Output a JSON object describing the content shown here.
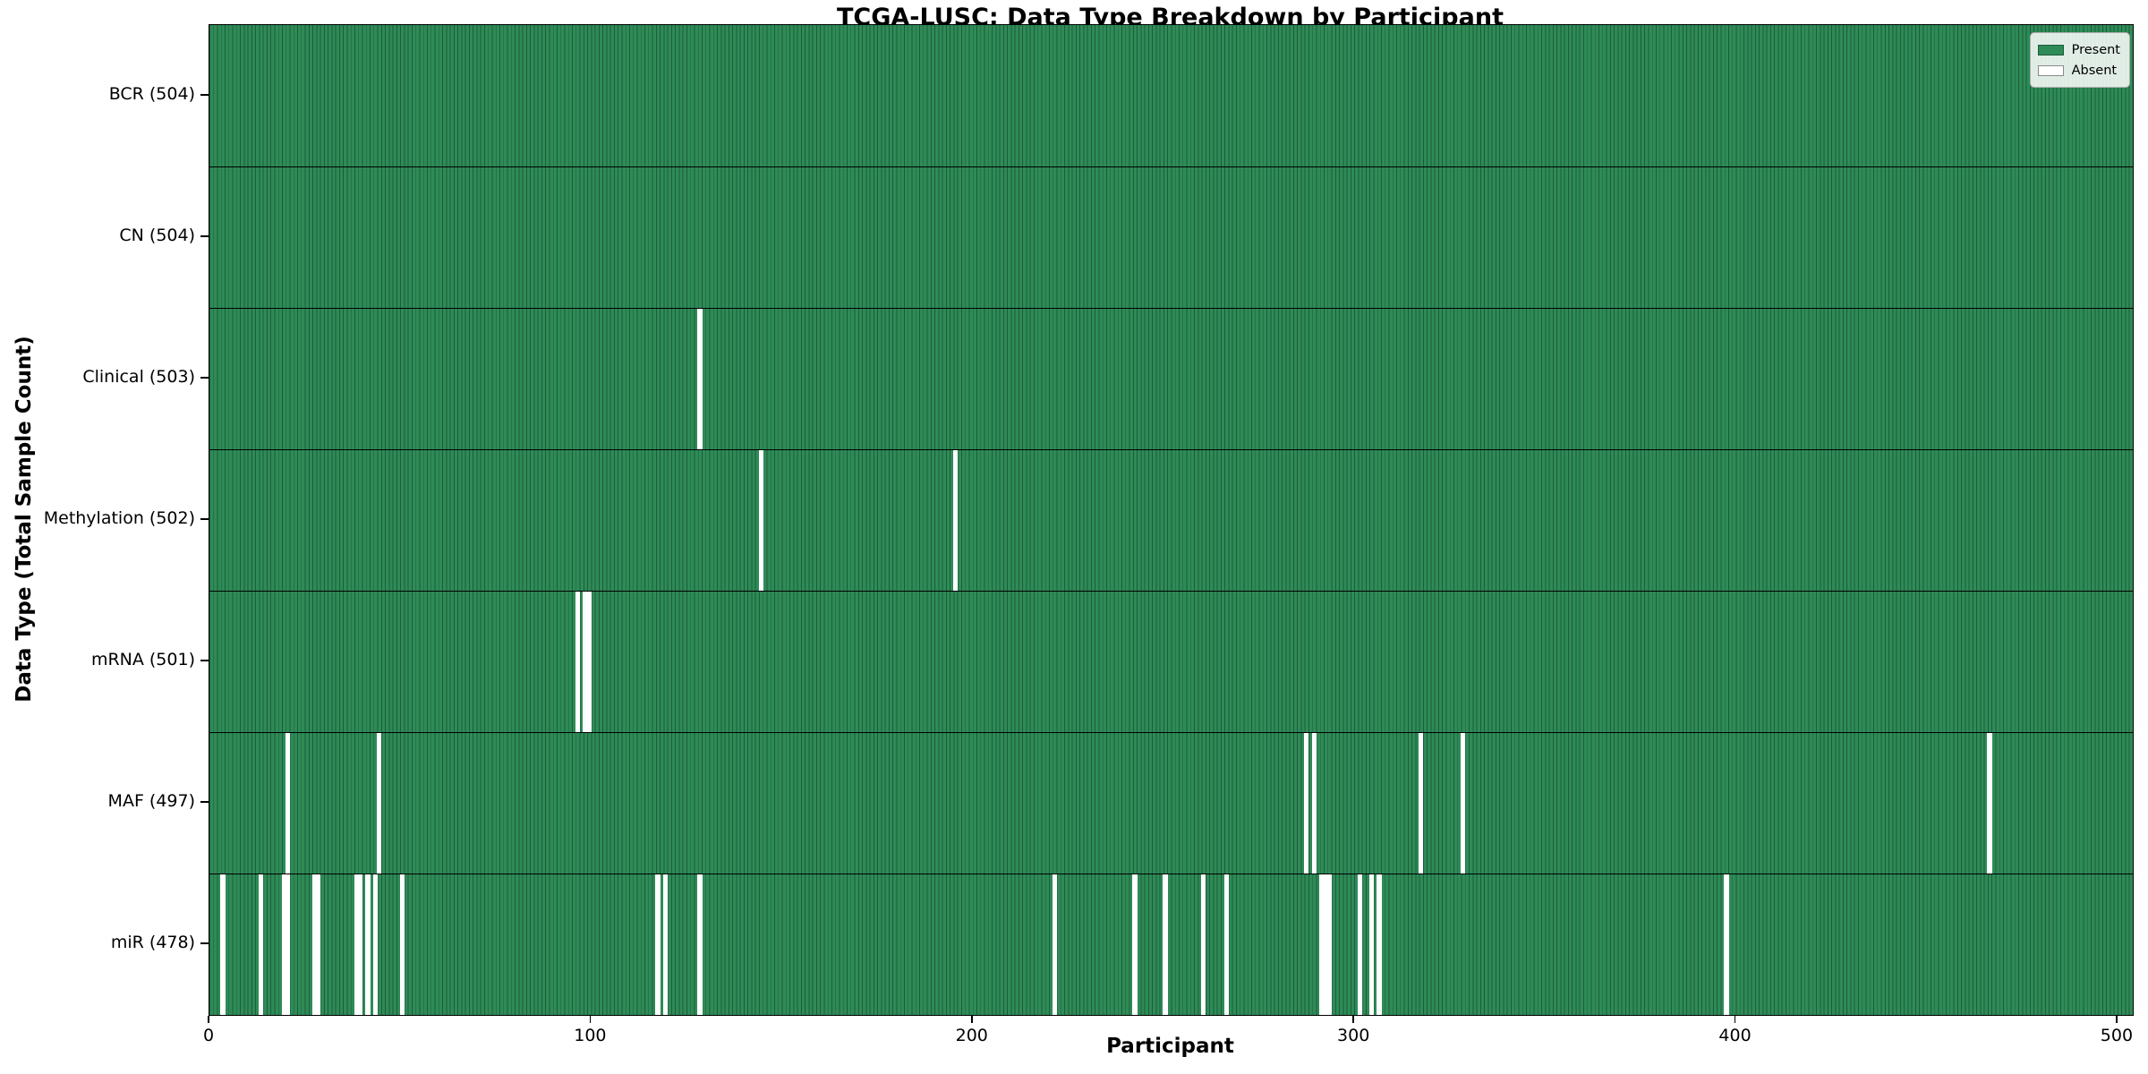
{
  "title": "TCGA-LUSC: Data Type Breakdown by Participant",
  "xlabel": "Participant",
  "ylabel": "Data Type (Total Sample Count)",
  "legend": {
    "present_label": "Present",
    "absent_label": "Absent",
    "position": "upper right"
  },
  "colors": {
    "present_fill": "#2e8b57",
    "bar_edge": "#1d5c3a",
    "absent_fill": "#ffffff",
    "spine": "#000000"
  },
  "chart_data": {
    "type": "heatmap",
    "title": "TCGA-LUSC: Data Type Breakdown by Participant",
    "xlabel": "Participant",
    "ylabel": "Data Type (Total Sample Count)",
    "xlim": [
      0,
      504
    ],
    "x_ticks": [
      0,
      100,
      200,
      300,
      400,
      500
    ],
    "grid": false,
    "legend_entries": [
      "Present",
      "Absent"
    ],
    "total_participants": 504,
    "rows": [
      {
        "data_type": "BCR",
        "label": "BCR (504)",
        "present_count": 504,
        "absent_count": 0,
        "absent_participants": []
      },
      {
        "data_type": "CN",
        "label": "CN (504)",
        "present_count": 504,
        "absent_count": 0,
        "absent_participants": []
      },
      {
        "data_type": "Clinical",
        "label": "Clinical (503)",
        "present_count": 503,
        "absent_count": 1,
        "absent_participants": [
          128
        ]
      },
      {
        "data_type": "Methylation",
        "label": "Methylation (502)",
        "present_count": 502,
        "absent_count": 2,
        "absent_participants": [
          144,
          195
        ]
      },
      {
        "data_type": "mRNA",
        "label": "mRNA (501)",
        "present_count": 501,
        "absent_count": 3,
        "absent_participants": [
          96,
          98,
          99
        ]
      },
      {
        "data_type": "MAF",
        "label": "MAF (497)",
        "present_count": 497,
        "absent_count": 7,
        "absent_participants": [
          20,
          44,
          287,
          289,
          317,
          328,
          466
        ]
      },
      {
        "data_type": "miR",
        "label": "miR (478)",
        "present_count": 478,
        "absent_count": 26,
        "absent_participants": [
          3,
          13,
          19,
          20,
          27,
          28,
          38,
          39,
          41,
          43,
          50,
          117,
          119,
          128,
          221,
          242,
          250,
          260,
          266,
          291,
          292,
          293,
          301,
          304,
          306,
          397
        ]
      }
    ]
  }
}
